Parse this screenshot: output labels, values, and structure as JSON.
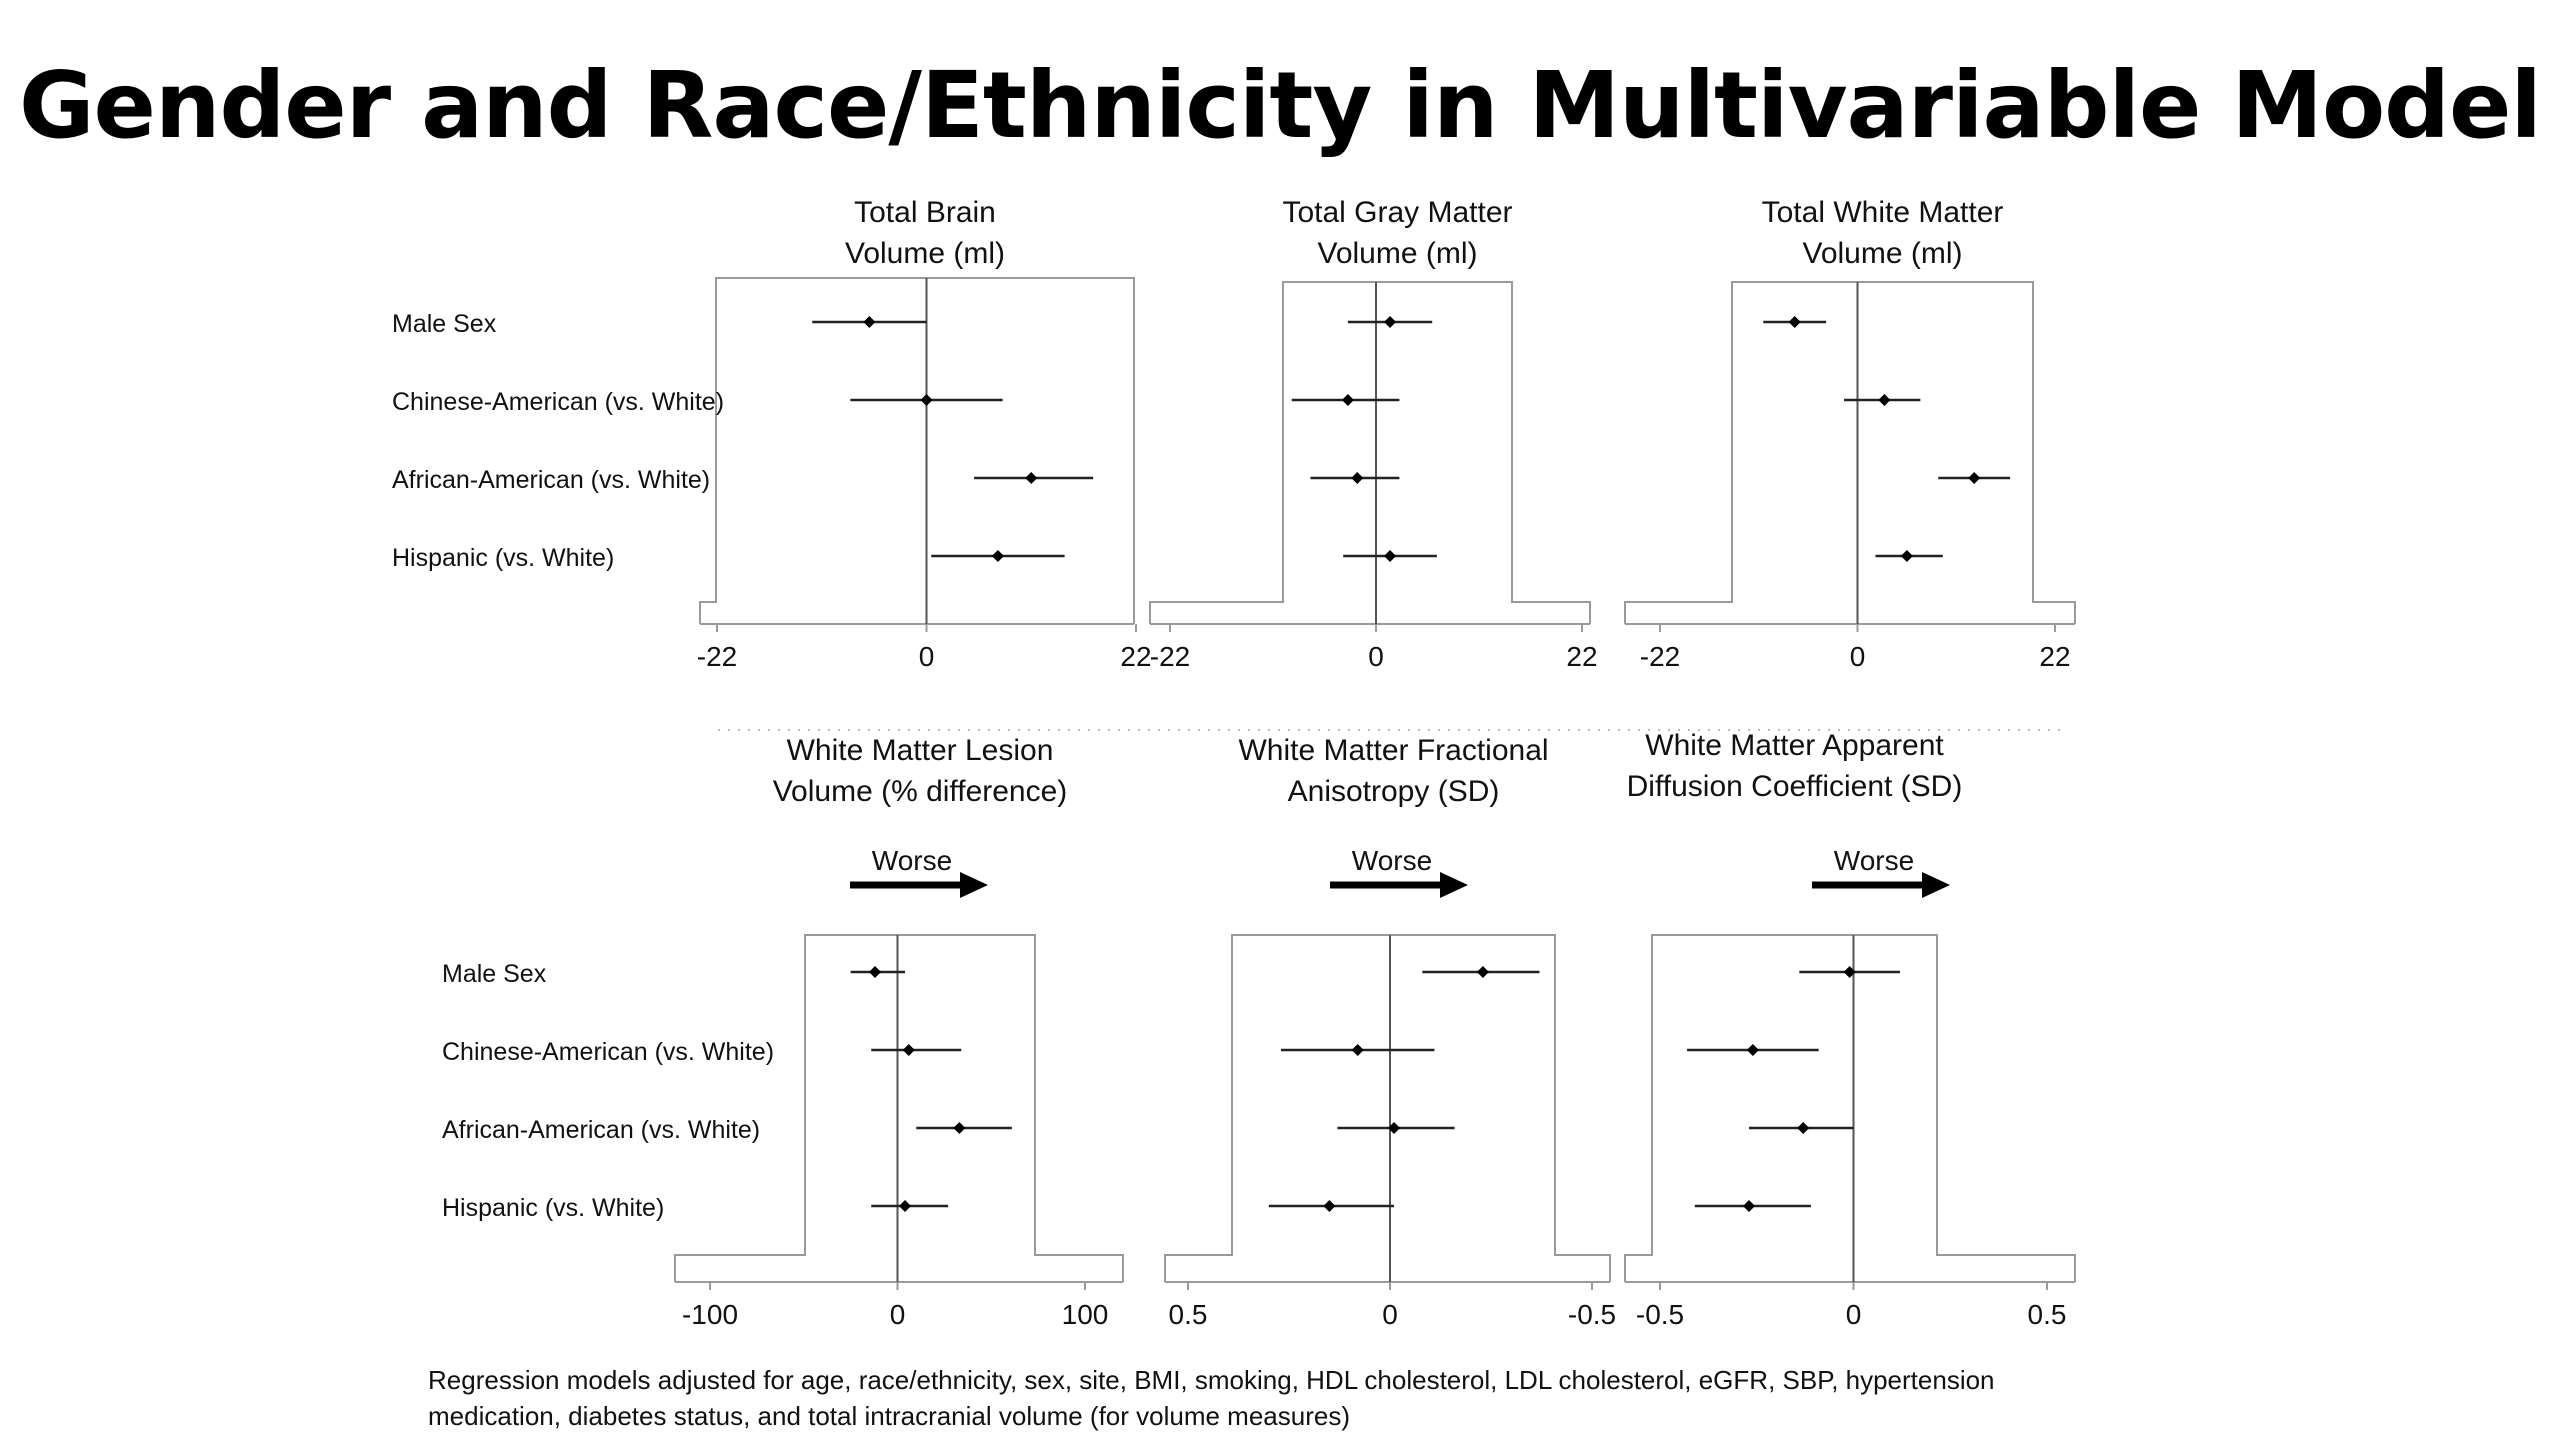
{
  "slide": {
    "title": "Gender and Race/Ethnicity in Multivariable Model",
    "footnote_line1": "Regression models adjusted for age, race/ethnicity, sex, site, BMI, smoking, HDL cholesterol, LDL cholesterol, eGFR, SBP, hypertension",
    "footnote_line2": "medication, diabetes status, and total intracranial volume (for volume measures)",
    "worse_label": "Worse"
  },
  "colors": {
    "text": "#111111",
    "frame": "#9a9a9a",
    "ci_line": "#222222",
    "point": "#000000",
    "arrow": "#000000",
    "zero_line": "#555555",
    "divider": "#bbbbbb"
  },
  "chart_data": [
    {
      "type": "forest",
      "title_lines": [
        "Total Brain",
        "Volume (ml)"
      ],
      "categories": [
        "Male Sex",
        "Chinese-American (vs. White)",
        "African-American (vs. White)",
        "Hispanic (vs. White)"
      ],
      "estimates": [
        -6,
        0,
        11,
        7.5
      ],
      "ci_lower": [
        -12,
        -8,
        5,
        0.5
      ],
      "ci_upper": [
        0,
        8,
        17.5,
        14.5
      ],
      "xlim": [
        -22,
        22
      ],
      "xticks": [
        "-22",
        "0",
        "22"
      ],
      "x_reversed": false,
      "worse_arrow": false
    },
    {
      "type": "forest",
      "title_lines": [
        "Total Gray Matter",
        "Volume (ml)"
      ],
      "categories": [
        "Male Sex",
        "Chinese-American (vs. White)",
        "African-American (vs. White)",
        "Hispanic (vs. White)"
      ],
      "estimates": [
        1.5,
        -3,
        -2,
        1.5
      ],
      "ci_lower": [
        -3,
        -9,
        -7,
        -3.5
      ],
      "ci_upper": [
        6,
        2.5,
        2.5,
        6.5
      ],
      "xlim": [
        -22,
        22
      ],
      "xticks": [
        "-22",
        "0",
        "22"
      ],
      "x_reversed": false,
      "worse_arrow": false
    },
    {
      "type": "forest",
      "title_lines": [
        "Total White Matter",
        "Volume (ml)"
      ],
      "categories": [
        "Male Sex",
        "Chinese-American (vs. White)",
        "African-American (vs. White)",
        "Hispanic (vs. White)"
      ],
      "estimates": [
        -7,
        3,
        13,
        5.5
      ],
      "ci_lower": [
        -10.5,
        -1.5,
        9,
        2
      ],
      "ci_upper": [
        -3.5,
        7,
        17,
        9.5
      ],
      "xlim": [
        -22,
        22
      ],
      "xticks": [
        "-22",
        "0",
        "22"
      ],
      "x_reversed": false,
      "worse_arrow": false
    },
    {
      "type": "forest",
      "title_lines": [
        "White Matter Lesion",
        "Volume (% difference)"
      ],
      "categories": [
        "Male Sex",
        "Chinese-American (vs. White)",
        "African-American (vs. White)",
        "Hispanic (vs. White)"
      ],
      "estimates": [
        -12,
        6,
        33,
        4
      ],
      "ci_lower": [
        -25,
        -14,
        10,
        -14
      ],
      "ci_upper": [
        4,
        34,
        61,
        27
      ],
      "xlim": [
        -100,
        100
      ],
      "xticks": [
        "-100",
        "0",
        "100"
      ],
      "x_reversed": false,
      "worse_arrow": true
    },
    {
      "type": "forest",
      "title_lines": [
        "White Matter Fractional",
        "Anisotropy (SD)"
      ],
      "categories": [
        "Male Sex",
        "Chinese-American (vs. White)",
        "African-American (vs. White)",
        "Hispanic (vs. White)"
      ],
      "estimates": [
        -0.23,
        0.08,
        -0.01,
        0.15
      ],
      "ci_lower": [
        -0.37,
        -0.11,
        -0.16,
        -0.01
      ],
      "ci_upper": [
        -0.08,
        0.27,
        0.13,
        0.3
      ],
      "xlim": [
        0.5,
        -0.5
      ],
      "xticks": [
        "0.5",
        "0",
        "-0.5"
      ],
      "x_reversed": true,
      "worse_arrow": true
    },
    {
      "type": "forest",
      "title_lines": [
        "White Matter Apparent",
        "Diffusion Coefficient (SD)"
      ],
      "categories": [
        "Male Sex",
        "Chinese-American (vs. White)",
        "African-American (vs. White)",
        "Hispanic (vs. White)"
      ],
      "estimates": [
        -0.01,
        -0.26,
        -0.13,
        -0.27
      ],
      "ci_lower": [
        -0.14,
        -0.43,
        -0.27,
        -0.41
      ],
      "ci_upper": [
        0.12,
        -0.09,
        0.0,
        -0.11
      ],
      "xlim": [
        -0.5,
        0.5
      ],
      "xticks": [
        "-0.5",
        "0",
        "0.5"
      ],
      "x_reversed": false,
      "worse_arrow": true
    }
  ]
}
